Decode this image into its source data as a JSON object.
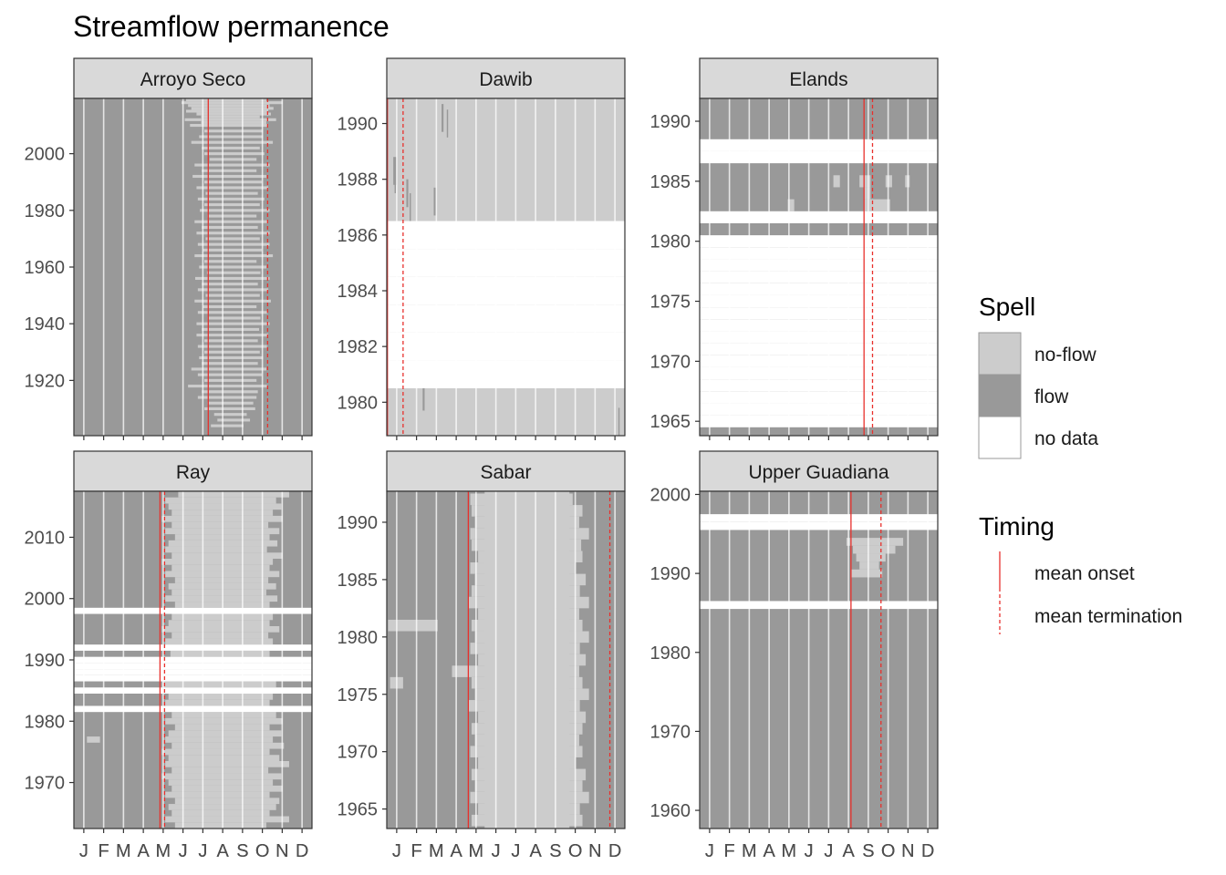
{
  "chart_data": {
    "type": "heatmap",
    "title": "Streamflow permanence",
    "month_labels": [
      "J",
      "F",
      "M",
      "A",
      "M",
      "J",
      "J",
      "A",
      "S",
      "O",
      "N",
      "D"
    ],
    "colors": {
      "no_flow": "#cccccc",
      "flow": "#999999",
      "no_data": "#ffffff",
      "timing_line": "#e8302c",
      "strip_fill": "#d9d9d9",
      "panel_border": "#333333",
      "grid": "#ffffff"
    },
    "legend": {
      "spell_title": "Spell",
      "spell_items": [
        {
          "key": "no_flow",
          "label": "no-flow"
        },
        {
          "key": "flow",
          "label": "flow"
        },
        {
          "key": "no_data",
          "label": "no data"
        }
      ],
      "timing_title": "Timing",
      "timing_items": [
        {
          "key": "onset",
          "label": "mean onset",
          "dashed": false
        },
        {
          "key": "termination",
          "label": "mean termination",
          "dashed": true
        }
      ],
      "placement": "right"
    },
    "panels": [
      {
        "name": "Arroyo Seco",
        "ylim": [
          1900.5,
          2019.5
        ],
        "yticks": [
          1920,
          1940,
          1960,
          1980,
          2000
        ],
        "onset": 206,
        "termination": 297,
        "background": "flow",
        "no_data_years": [],
        "noflow_rects": [
          [
            2019,
            2019,
            172,
            295
          ],
          [
            2018,
            2018,
            165,
            320
          ],
          [
            2017,
            2017,
            175,
            300
          ],
          [
            2016,
            2016,
            180,
            306
          ],
          [
            2015,
            2015,
            172,
            298
          ],
          [
            2014,
            2014,
            188,
            302
          ],
          [
            2013,
            2013,
            195,
            285
          ],
          [
            2012,
            2012,
            170,
            310
          ],
          [
            2011,
            2011,
            195,
            295
          ],
          [
            2010,
            2010,
            178,
            298
          ],
          [
            2008,
            2008,
            200,
            290
          ],
          [
            2006,
            2006,
            192,
            290
          ],
          [
            2004,
            2004,
            180,
            305
          ],
          [
            2002,
            2002,
            196,
            285
          ],
          [
            2000,
            2000,
            200,
            292
          ],
          [
            1998,
            1998,
            208,
            280
          ],
          [
            1996,
            1996,
            185,
            300
          ],
          [
            1994,
            1994,
            196,
            280
          ],
          [
            1992,
            1992,
            182,
            295
          ],
          [
            1990,
            1990,
            200,
            288
          ],
          [
            1988,
            1988,
            188,
            298
          ],
          [
            1986,
            1986,
            202,
            282
          ],
          [
            1984,
            1984,
            190,
            292
          ],
          [
            1982,
            1982,
            200,
            285
          ],
          [
            1980,
            1980,
            193,
            300
          ],
          [
            1978,
            1978,
            205,
            280
          ],
          [
            1976,
            1976,
            185,
            298
          ],
          [
            1974,
            1974,
            196,
            282
          ],
          [
            1972,
            1972,
            188,
            300
          ],
          [
            1970,
            1970,
            202,
            285
          ],
          [
            1968,
            1968,
            190,
            300
          ],
          [
            1966,
            1966,
            198,
            288
          ],
          [
            1964,
            1964,
            185,
            305
          ],
          [
            1962,
            1962,
            200,
            280
          ],
          [
            1960,
            1960,
            192,
            295
          ],
          [
            1958,
            1958,
            204,
            286
          ],
          [
            1956,
            1956,
            186,
            300
          ],
          [
            1954,
            1954,
            196,
            282
          ],
          [
            1952,
            1952,
            190,
            298
          ],
          [
            1950,
            1950,
            202,
            285
          ],
          [
            1948,
            1948,
            185,
            302
          ],
          [
            1946,
            1946,
            198,
            280
          ],
          [
            1944,
            1944,
            190,
            296
          ],
          [
            1942,
            1942,
            205,
            286
          ],
          [
            1940,
            1940,
            188,
            300
          ],
          [
            1938,
            1938,
            196,
            284
          ],
          [
            1936,
            1936,
            188,
            298
          ],
          [
            1934,
            1934,
            200,
            282
          ],
          [
            1932,
            1932,
            190,
            296
          ],
          [
            1930,
            1930,
            200,
            285
          ],
          [
            1928,
            1928,
            192,
            290
          ],
          [
            1926,
            1926,
            196,
            282
          ],
          [
            1924,
            1924,
            180,
            295
          ],
          [
            1922,
            1922,
            190,
            288
          ],
          [
            1920,
            1920,
            200,
            280
          ],
          [
            1918,
            1918,
            175,
            296
          ],
          [
            1916,
            1916,
            196,
            282
          ],
          [
            1914,
            1914,
            190,
            280
          ],
          [
            1912,
            1912,
            205,
            275
          ],
          [
            1910,
            1910,
            200,
            278
          ],
          [
            1908,
            1908,
            215,
            265
          ],
          [
            1906,
            1906,
            220,
            270
          ],
          [
            1904,
            1904,
            210,
            260
          ]
        ]
      },
      {
        "name": "Dawib",
        "ylim": [
          1978.8,
          1990.9
        ],
        "yticks": [
          1980,
          1982,
          1984,
          1986,
          1988,
          1990
        ],
        "onset": 1,
        "termination": 25,
        "background": "no_flow",
        "no_data_years": [
          1981,
          1982,
          1983,
          1984,
          1985,
          1986
        ],
        "noflow_rects": [],
        "flow_rects": [
          [
            1990.2,
            1990.2,
            84,
            87
          ],
          [
            1990.0,
            1990.0,
            92,
            94
          ],
          [
            1988.3,
            1988.3,
            10,
            15
          ],
          [
            1988.0,
            1988.0,
            12,
            14
          ],
          [
            1987.5,
            1987.5,
            30,
            33
          ],
          [
            1987.2,
            1987.2,
            72,
            75
          ],
          [
            1987.0,
            1987.0,
            35,
            37
          ],
          [
            1980.2,
            1980.2,
            55,
            58
          ],
          [
            1979.3,
            1979.3,
            355,
            357
          ]
        ]
      },
      {
        "name": "Elands",
        "ylim": [
          1963.8,
          1991.9
        ],
        "yticks": [
          1965,
          1970,
          1975,
          1980,
          1985,
          1990
        ],
        "onset": 252,
        "termination": 265,
        "background": "flow",
        "no_data_years": [
          1965,
          1966,
          1967,
          1968,
          1969,
          1970,
          1971,
          1972,
          1973,
          1974,
          1975,
          1976,
          1977,
          1978,
          1979,
          1980,
          1982,
          1987,
          1988
        ],
        "noflow_rects": [
          [
            1985,
            1985,
            205,
            215
          ],
          [
            1985,
            1985,
            245,
            262
          ],
          [
            1985,
            1985,
            285,
            295
          ],
          [
            1985,
            1985,
            315,
            322
          ],
          [
            1984,
            1984,
            252,
            262
          ],
          [
            1983,
            1983,
            252,
            292
          ],
          [
            1983,
            1983,
            135,
            145
          ]
        ]
      },
      {
        "name": "Ray",
        "ylim": [
          1962.5,
          2017.5
        ],
        "yticks": [
          1970,
          1980,
          1990,
          2000,
          2010
        ],
        "onset": 132,
        "termination": 139,
        "background": "flow",
        "no_data_years": [
          1982,
          1985,
          1987,
          1988,
          1989,
          1990,
          1992,
          1998
        ],
        "noflow_rects": [
          [
            2017,
            2017,
            160,
            330
          ],
          [
            2016,
            2016,
            140,
            310
          ],
          [
            2015,
            2015,
            145,
            318
          ],
          [
            2014,
            2014,
            150,
            305
          ],
          [
            2013,
            2013,
            135,
            320
          ],
          [
            2012,
            2012,
            150,
            298
          ],
          [
            2011,
            2011,
            140,
            315
          ],
          [
            2010,
            2010,
            155,
            300
          ],
          [
            2009,
            2009,
            145,
            312
          ],
          [
            2008,
            2008,
            140,
            296
          ],
          [
            2007,
            2007,
            150,
            320
          ],
          [
            2006,
            2006,
            135,
            305
          ],
          [
            2005,
            2005,
            150,
            300
          ],
          [
            2004,
            2004,
            140,
            315
          ],
          [
            2003,
            2003,
            155,
            298
          ],
          [
            2002,
            2002,
            145,
            310
          ],
          [
            2001,
            2001,
            150,
            295
          ],
          [
            2000,
            2000,
            140,
            312
          ],
          [
            1999,
            1999,
            155,
            300
          ],
          [
            1997,
            1997,
            150,
            305
          ],
          [
            1996,
            1996,
            145,
            300
          ],
          [
            1995,
            1995,
            135,
            315
          ],
          [
            1994,
            1994,
            150,
            298
          ],
          [
            1993,
            1993,
            140,
            305
          ],
          [
            1991,
            1991,
            148,
            300
          ],
          [
            1986,
            1986,
            135,
            310
          ],
          [
            1984,
            1984,
            145,
            305
          ],
          [
            1983,
            1983,
            140,
            300
          ],
          [
            1981,
            1981,
            150,
            310
          ],
          [
            1980,
            1980,
            140,
            320
          ],
          [
            1979,
            1979,
            155,
            300
          ],
          [
            1978,
            1978,
            145,
            318
          ],
          [
            1977,
            1977,
            20,
            40
          ],
          [
            1977,
            1977,
            140,
            305
          ],
          [
            1976,
            1976,
            150,
            322
          ],
          [
            1975,
            1975,
            135,
            300
          ],
          [
            1974,
            1974,
            145,
            315
          ],
          [
            1973,
            1973,
            140,
            330
          ],
          [
            1972,
            1972,
            150,
            298
          ],
          [
            1971,
            1971,
            135,
            318
          ],
          [
            1970,
            1970,
            145,
            305
          ],
          [
            1969,
            1969,
            150,
            320
          ],
          [
            1968,
            1968,
            140,
            300
          ],
          [
            1967,
            1967,
            155,
            315
          ],
          [
            1966,
            1966,
            145,
            310
          ],
          [
            1965,
            1965,
            150,
            300
          ],
          [
            1964,
            1964,
            140,
            330
          ],
          [
            1963,
            1963,
            155,
            295
          ]
        ]
      },
      {
        "name": "Sabar",
        "ylim": [
          1963.3,
          1992.7
        ],
        "yticks": [
          1965,
          1970,
          1975,
          1980,
          1985,
          1990
        ],
        "onset": 125,
        "termination": 342,
        "background": "flow",
        "no_data_years": [],
        "noflow_rects": [
          [
            1963.5,
            1992.5,
            150,
            280
          ],
          [
            1992,
            1992,
            128,
            285
          ],
          [
            1991,
            1991,
            130,
            300
          ],
          [
            1990,
            1990,
            135,
            295
          ],
          [
            1989,
            1989,
            128,
            310
          ],
          [
            1988,
            1988,
            130,
            298
          ],
          [
            1987,
            1987,
            140,
            300
          ],
          [
            1986,
            1986,
            128,
            290
          ],
          [
            1985,
            1985,
            135,
            305
          ],
          [
            1984,
            1984,
            130,
            296
          ],
          [
            1983,
            1983,
            125,
            310
          ],
          [
            1982,
            1982,
            140,
            295
          ],
          [
            1981,
            1981,
            2,
            78
          ],
          [
            1981,
            1981,
            130,
            300
          ],
          [
            1980,
            1980,
            135,
            310
          ],
          [
            1979,
            1979,
            128,
            296
          ],
          [
            1978,
            1978,
            140,
            305
          ],
          [
            1977,
            1977,
            100,
            295
          ],
          [
            1976,
            1976,
            5,
            25
          ],
          [
            1976,
            1976,
            130,
            300
          ],
          [
            1975,
            1975,
            135,
            310
          ],
          [
            1974,
            1974,
            125,
            296
          ],
          [
            1973,
            1973,
            140,
            305
          ],
          [
            1972,
            1972,
            130,
            300
          ],
          [
            1971,
            1971,
            135,
            295
          ],
          [
            1970,
            1970,
            128,
            300
          ],
          [
            1969,
            1969,
            140,
            290
          ],
          [
            1968,
            1968,
            130,
            305
          ],
          [
            1967,
            1967,
            135,
            300
          ],
          [
            1966,
            1966,
            128,
            310
          ],
          [
            1965,
            1965,
            140,
            296
          ],
          [
            1964,
            1964,
            130,
            300
          ]
        ]
      },
      {
        "name": "Upper Guadiana",
        "ylim": [
          1957.7,
          2000.4
        ],
        "yticks": [
          1960,
          1970,
          1980,
          1990,
          2000
        ],
        "onset": 232,
        "termination": 278,
        "background": "flow",
        "no_data_years": [
          1986,
          1996,
          1997
        ],
        "noflow_rects": [
          [
            1994,
            1994,
            225,
            312
          ],
          [
            1993,
            1993,
            235,
            300
          ],
          [
            1992,
            1992,
            240,
            285
          ],
          [
            1991,
            1991,
            245,
            275
          ],
          [
            1990,
            1990,
            232,
            280
          ]
        ]
      }
    ]
  }
}
